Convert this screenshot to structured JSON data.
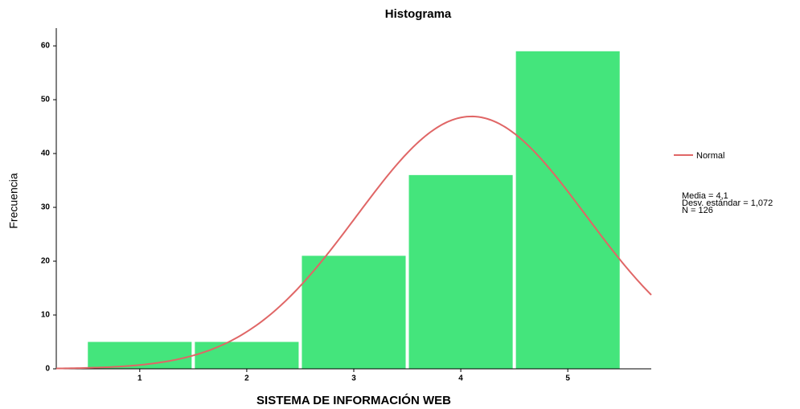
{
  "chart_data": {
    "type": "histogram",
    "title": "Histograma",
    "xlabel": "SISTEMA DE INFORMACIÓN WEB",
    "ylabel": "Frecuencia",
    "bins": [
      0.5,
      1.5,
      2.5,
      3.5,
      4.5,
      5.5
    ],
    "values": [
      5,
      5,
      21,
      36,
      59
    ],
    "color": "#44e57c",
    "xlim": [
      0.22,
      5.78
    ],
    "xticks": [
      1,
      2,
      3,
      4,
      5
    ],
    "ylim": [
      0,
      63
    ],
    "yticks": [
      0,
      10,
      20,
      30,
      40,
      50,
      60
    ],
    "normal": {
      "name": "Normal",
      "color": "#e06666",
      "mean": 4.1,
      "sd": 1.072,
      "n": 126
    },
    "annotations": [
      "Media = 4,1",
      "Desv. estándar = 1,072",
      "N = 126"
    ]
  }
}
